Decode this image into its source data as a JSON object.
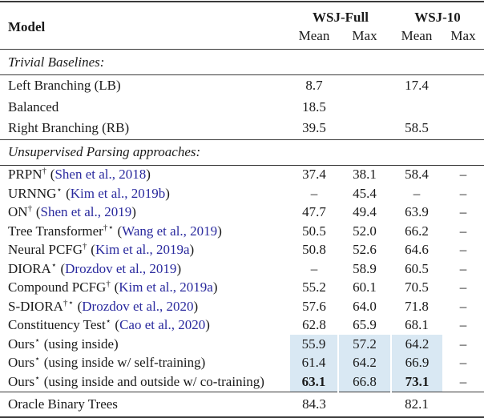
{
  "colors": {
    "highlight": "#d9e8f3",
    "citation": "#2a2a9e",
    "rule": "#3a3a3a"
  },
  "punct": {
    "open_paren": "(",
    "close_paren": ")"
  },
  "header": {
    "model": "Model",
    "groups": [
      {
        "label": "WSJ-Full",
        "sub": [
          "Mean",
          "Max"
        ]
      },
      {
        "label": "WSJ-10",
        "sub": [
          "Mean",
          "Max"
        ]
      }
    ]
  },
  "sections": [
    {
      "label": "Trivial Baselines:",
      "style": "base",
      "rows": [
        {
          "name": "Left Branching (LB)",
          "values": [
            "8.7",
            "",
            "17.4",
            ""
          ]
        },
        {
          "name": "Balanced",
          "values": [
            "18.5",
            "",
            "",
            ""
          ]
        },
        {
          "name": "Right Branching (RB)",
          "values": [
            "39.5",
            "",
            "58.5",
            ""
          ]
        }
      ]
    },
    {
      "label": "Unsupervised Parsing approaches:",
      "style": "unsup",
      "rows": [
        {
          "name": "PRPN",
          "sup": "†",
          "cite": "Shen et al., 2018",
          "values": [
            "37.4",
            "38.1",
            "58.4",
            "–"
          ]
        },
        {
          "name": "URNNG",
          "sup": "⋆",
          "cite": "Kim et al., 2019b",
          "values": [
            "–",
            "45.4",
            "–",
            "–"
          ]
        },
        {
          "name": "ON",
          "sup": "†",
          "cite": "Shen et al., 2019",
          "values": [
            "47.7",
            "49.4",
            "63.9",
            "–"
          ]
        },
        {
          "name": "Tree Transformer",
          "sup": "†⋆",
          "cite": "Wang et al., 2019",
          "values": [
            "50.5",
            "52.0",
            "66.2",
            "–"
          ]
        },
        {
          "name": "Neural PCFG",
          "sup": "†",
          "cite": "Kim et al., 2019a",
          "values": [
            "50.8",
            "52.6",
            "64.6",
            "–"
          ]
        },
        {
          "name": "DIORA",
          "sup": "⋆",
          "cite": "Drozdov et al., 2019",
          "values": [
            "–",
            "58.9",
            "60.5",
            "–"
          ]
        },
        {
          "name": "Compound PCFG",
          "sup": "†",
          "cite": "Kim et al., 2019a",
          "values": [
            "55.2",
            "60.1",
            "70.5",
            "–"
          ]
        },
        {
          "name": "S-DIORA",
          "sup": "†⋆",
          "cite": "Drozdov et al., 2020",
          "values": [
            "57.6",
            "64.0",
            "71.8",
            "–"
          ]
        },
        {
          "name": "Constituency Test",
          "sup": "⋆",
          "cite": "Cao et al., 2020",
          "values": [
            "62.8",
            "65.9",
            "68.1",
            "–"
          ]
        },
        {
          "name": "Ours",
          "sup": "⋆",
          "desc": "(using inside)",
          "values": [
            "55.9",
            "57.2",
            "64.2",
            "–"
          ],
          "highlight": [
            true,
            true,
            true,
            false
          ]
        },
        {
          "name": "Ours",
          "sup": "⋆",
          "desc": "(using inside w/ self-training)",
          "values": [
            "61.4",
            "64.2",
            "66.9",
            "–"
          ],
          "highlight": [
            true,
            true,
            true,
            false
          ]
        },
        {
          "name": "Ours",
          "sup": "⋆",
          "desc": "(using inside and outside w/ co-training)",
          "values": [
            "63.1",
            "66.8",
            "73.1",
            "–"
          ],
          "highlight": [
            true,
            true,
            true,
            false
          ],
          "bold": [
            true,
            false,
            true,
            false
          ]
        }
      ]
    }
  ],
  "footer": {
    "rows": [
      {
        "name": "Oracle Binary Trees",
        "values": [
          "84.3",
          "",
          "82.1",
          ""
        ]
      }
    ]
  }
}
